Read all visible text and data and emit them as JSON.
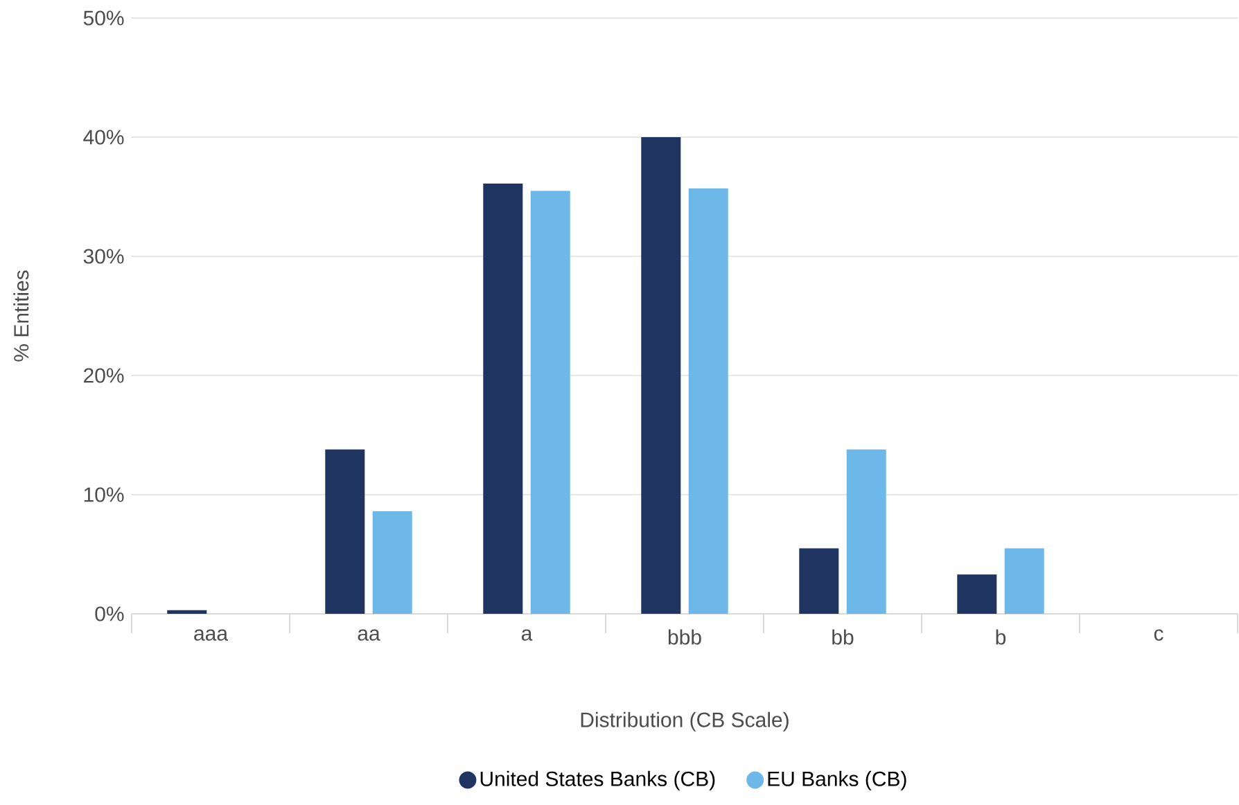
{
  "chart_data": {
    "type": "bar",
    "xlabel": "Distribution (CB Scale)",
    "ylabel": "% Entities",
    "categories": [
      "aaa",
      "aa",
      "a",
      "bbb",
      "bb",
      "b",
      "c"
    ],
    "series": [
      {
        "name": "United States Banks (CB)",
        "color": "#1f3460",
        "values": [
          0.3,
          13.8,
          36.1,
          40.0,
          5.5,
          3.3,
          0
        ]
      },
      {
        "name": "EU Banks (CB)",
        "color": "#6db8e8",
        "values": [
          0,
          8.6,
          35.5,
          35.7,
          13.8,
          5.5,
          0
        ]
      }
    ],
    "ylim": [
      0,
      50
    ],
    "yticks": [
      {
        "value": 0,
        "label": "0%"
      },
      {
        "value": 10,
        "label": "10%"
      },
      {
        "value": 20,
        "label": "20%"
      },
      {
        "value": 30,
        "label": "30%"
      },
      {
        "value": 40,
        "label": "40%"
      },
      {
        "value": 50,
        "label": "50%"
      }
    ],
    "grid": "y",
    "legend": "bottom"
  }
}
